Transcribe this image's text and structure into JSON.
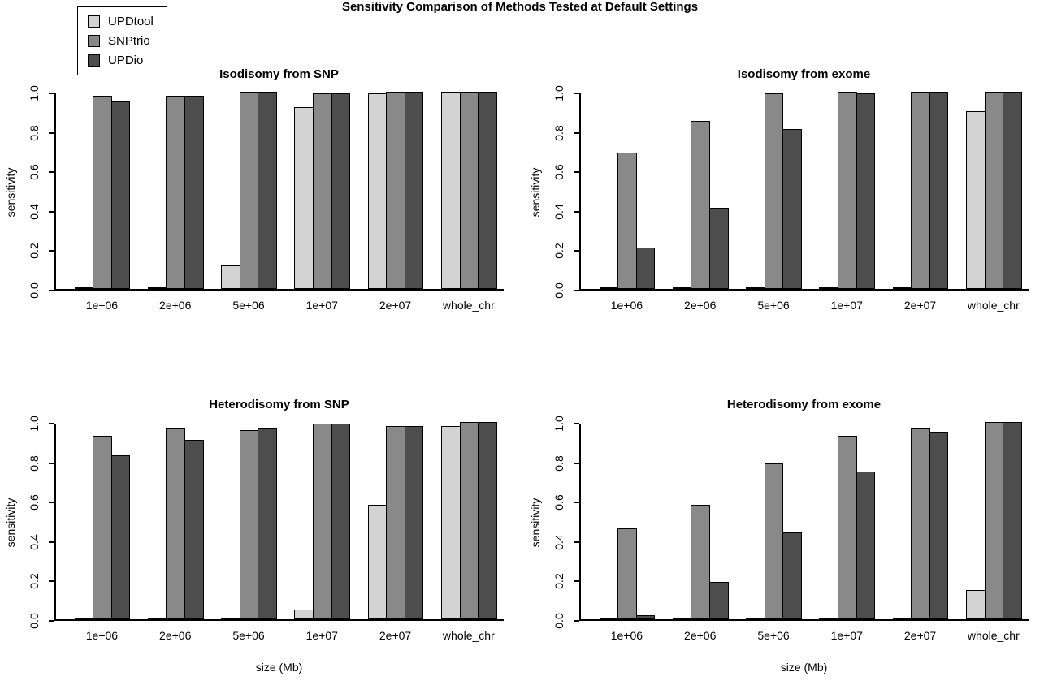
{
  "main_title": "Sensitivity Comparison of Methods Tested at Default Settings",
  "axis": {
    "ylabel": "sensitivity",
    "xlabel": "size (Mb)"
  },
  "legend": {
    "items": [
      {
        "label": "UPDtool",
        "color": "#d3d3d3"
      },
      {
        "label": "SNPtrio",
        "color": "#898989"
      },
      {
        "label": "UPDio",
        "color": "#4d4d4d"
      }
    ]
  },
  "chart_data": [
    {
      "type": "bar",
      "title": "Isodisomy from SNP",
      "ylabel": "sensitivity",
      "xlabel": "",
      "ylim": [
        0,
        1
      ],
      "yticks": [
        0.0,
        0.2,
        0.4,
        0.6,
        0.8,
        1.0
      ],
      "categories": [
        "1e+06",
        "2e+06",
        "5e+06",
        "1e+07",
        "2e+07",
        "whole_chr"
      ],
      "series": [
        {
          "name": "UPDtool",
          "values": [
            0,
            0,
            0.12,
            0.92,
            0.99,
            1.0
          ]
        },
        {
          "name": "SNPtrio",
          "values": [
            0.98,
            0.98,
            1.0,
            0.99,
            1.0,
            1.0
          ]
        },
        {
          "name": "UPDio",
          "values": [
            0.95,
            0.98,
            1.0,
            0.99,
            1.0,
            1.0
          ]
        }
      ]
    },
    {
      "type": "bar",
      "title": "Isodisomy from exome",
      "ylabel": "sensitivity",
      "xlabel": "",
      "ylim": [
        0,
        1
      ],
      "yticks": [
        0.0,
        0.2,
        0.4,
        0.6,
        0.8,
        1.0
      ],
      "categories": [
        "1e+06",
        "2e+06",
        "5e+06",
        "1e+07",
        "2e+07",
        "whole_chr"
      ],
      "series": [
        {
          "name": "UPDtool",
          "values": [
            0,
            0,
            0,
            0.01,
            0,
            0.9
          ]
        },
        {
          "name": "SNPtrio",
          "values": [
            0.69,
            0.85,
            0.99,
            1.0,
            1.0,
            1.0
          ]
        },
        {
          "name": "UPDio",
          "values": [
            0.21,
            0.41,
            0.81,
            0.99,
            1.0,
            1.0
          ]
        }
      ]
    },
    {
      "type": "bar",
      "title": "Heterodisomy from SNP",
      "ylabel": "sensitivity",
      "xlabel": "size (Mb)",
      "ylim": [
        0,
        1
      ],
      "yticks": [
        0.0,
        0.2,
        0.4,
        0.6,
        0.8,
        1.0
      ],
      "categories": [
        "1e+06",
        "2e+06",
        "5e+06",
        "1e+07",
        "2e+07",
        "whole_chr"
      ],
      "series": [
        {
          "name": "UPDtool",
          "values": [
            0,
            0,
            0,
            0.05,
            0.58,
            0.98
          ]
        },
        {
          "name": "SNPtrio",
          "values": [
            0.93,
            0.97,
            0.96,
            0.99,
            0.98,
            1.0
          ]
        },
        {
          "name": "UPDio",
          "values": [
            0.83,
            0.91,
            0.97,
            0.99,
            0.98,
            1.0
          ]
        }
      ]
    },
    {
      "type": "bar",
      "title": "Heterodisomy from exome",
      "ylabel": "sensitivity",
      "xlabel": "size (Mb)",
      "ylim": [
        0,
        1
      ],
      "yticks": [
        0.0,
        0.2,
        0.4,
        0.6,
        0.8,
        1.0
      ],
      "categories": [
        "1e+06",
        "2e+06",
        "5e+06",
        "1e+07",
        "2e+07",
        "whole_chr"
      ],
      "series": [
        {
          "name": "UPDtool",
          "values": [
            0,
            0,
            0,
            0,
            0,
            0.15
          ]
        },
        {
          "name": "SNPtrio",
          "values": [
            0.46,
            0.58,
            0.79,
            0.93,
            0.97,
            1.0
          ]
        },
        {
          "name": "UPDio",
          "values": [
            0.02,
            0.19,
            0.44,
            0.75,
            0.95,
            1.0
          ]
        }
      ]
    }
  ]
}
